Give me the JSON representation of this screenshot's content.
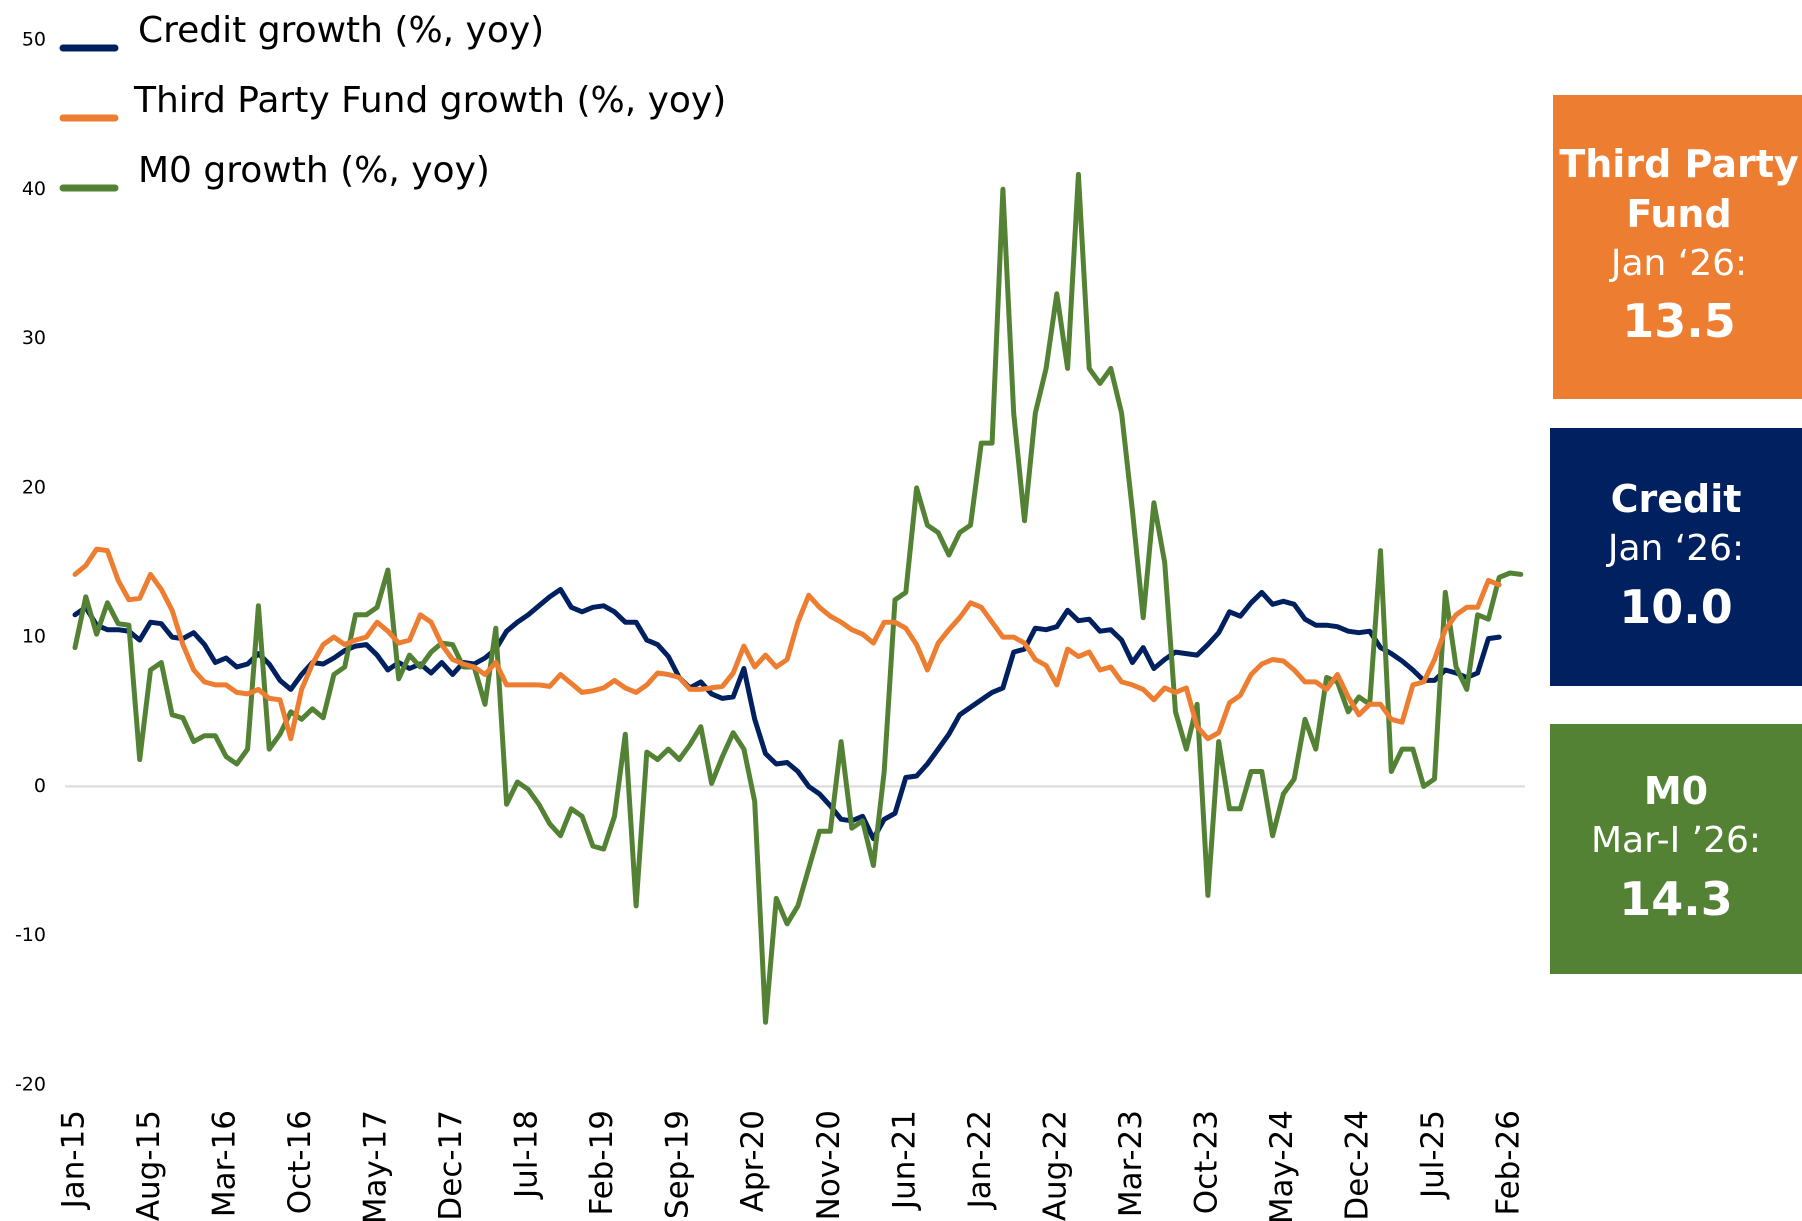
{
  "chart_data": {
    "type": "line",
    "categories": [
      "Jan-15",
      null,
      null,
      null,
      null,
      null,
      null,
      "Aug-15",
      null,
      null,
      null,
      null,
      null,
      null,
      "Mar-16",
      null,
      null,
      null,
      null,
      null,
      null,
      "Oct-16",
      null,
      null,
      null,
      null,
      null,
      null,
      "May-17",
      null,
      null,
      null,
      null,
      null,
      null,
      "Dec-17",
      null,
      null,
      null,
      null,
      null,
      null,
      "Jul-18",
      null,
      null,
      null,
      null,
      null,
      null,
      "Feb-19",
      null,
      null,
      null,
      null,
      null,
      null,
      "Sep-19",
      null,
      null,
      null,
      null,
      null,
      null,
      "Apr-20",
      null,
      null,
      null,
      null,
      null,
      null,
      "Nov-20",
      null,
      null,
      null,
      null,
      null,
      null,
      "Jun-21",
      null,
      null,
      null,
      null,
      null,
      null,
      "Jan-22",
      null,
      null,
      null,
      null,
      null,
      null,
      "Aug-22",
      null,
      null,
      null,
      null,
      null,
      null,
      "Mar-23",
      null,
      null,
      null,
      null,
      null,
      null,
      "Oct-23",
      null,
      null,
      null,
      null,
      null,
      null,
      "May-24",
      null,
      null,
      null,
      null,
      null,
      null,
      "Dec-24",
      null,
      null,
      null,
      null,
      null,
      null,
      "Jul-25",
      null,
      null,
      null,
      null,
      null,
      null,
      "Feb-26",
      null
    ],
    "series": [
      {
        "name": "Credit growth (%, yoy)",
        "color": "#002060",
        "values": [
          11.5,
          12,
          10.8,
          10.5,
          10.5,
          10.4,
          9.8,
          11,
          10.9,
          10,
          9.9,
          10.3,
          9.5,
          8.3,
          8.6,
          8,
          8.2,
          8.9,
          8.2,
          7.1,
          6.5,
          7.5,
          8.3,
          8.2,
          8.6,
          9.1,
          9.4,
          9.5,
          8.8,
          7.8,
          8.3,
          7.9,
          8.2,
          7.6,
          8.3,
          7.5,
          8.3,
          8.2,
          8.6,
          9.2,
          10.4,
          11,
          11.5,
          12.1,
          12.7,
          13.2,
          12,
          11.7,
          12,
          12.1,
          11.7,
          11,
          11,
          9.8,
          9.5,
          8.7,
          7.3,
          6.6,
          7,
          6.2,
          5.9,
          6,
          7.9,
          4.5,
          2.2,
          1.5,
          1.6,
          1,
          0,
          -0.5,
          -1.3,
          -2.2,
          -2.3,
          -2,
          -3.5,
          -2.2,
          -1.8,
          0.6,
          0.7,
          1.5,
          2.5,
          3.5,
          4.8,
          5.3,
          5.8,
          6.3,
          6.6,
          9,
          9.2,
          10.6,
          10.5,
          10.7,
          11.8,
          11.1,
          11.2,
          10.4,
          10.5,
          9.8,
          8.3,
          9.3,
          7.9,
          8.5,
          9,
          8.9,
          8.8,
          9.5,
          10.3,
          11.7,
          11.4,
          12.3,
          13,
          12.2,
          12.4,
          12.2,
          11.2,
          10.8,
          10.8,
          10.7,
          10.4,
          10.3,
          10.4,
          9.3,
          8.9,
          8.4,
          7.8,
          7.1,
          7.1,
          7.8,
          7.6,
          7.3,
          7.6,
          9.9,
          10.0,
          null,
          null
        ]
      },
      {
        "name": "Third Party Fund growth (%, yoy)",
        "color": "#ed7d31",
        "values": [
          14.2,
          14.8,
          15.9,
          15.8,
          13.8,
          12.5,
          12.6,
          14.2,
          13.2,
          11.8,
          9.5,
          7.8,
          7,
          6.8,
          6.8,
          6.3,
          6.2,
          6.5,
          5.9,
          5.8,
          3.2,
          6.5,
          8.2,
          9.5,
          10,
          9.5,
          9.8,
          10,
          11,
          10.4,
          9.6,
          9.8,
          11.5,
          11,
          9.5,
          8.5,
          8.2,
          8,
          7.5,
          8.3,
          6.8,
          6.8,
          6.8,
          6.8,
          6.7,
          7.5,
          6.9,
          6.3,
          6.4,
          6.6,
          7.1,
          6.6,
          6.3,
          6.8,
          7.6,
          7.5,
          7.3,
          6.5,
          6.5,
          6.6,
          6.7,
          7.6,
          9.4,
          8,
          8.8,
          8,
          8.5,
          11,
          12.8,
          12,
          11.4,
          11,
          10.5,
          10.2,
          9.6,
          11,
          11,
          10.6,
          9.5,
          7.8,
          9.6,
          10.5,
          11.3,
          12.3,
          12,
          11,
          10,
          10,
          9.6,
          8.5,
          8.1,
          6.8,
          9.2,
          8.7,
          9,
          7.8,
          8,
          7,
          6.8,
          6.5,
          5.8,
          6.6,
          6.3,
          6.6,
          4,
          3.2,
          3.6,
          5.6,
          6.1,
          7.5,
          8.2,
          8.5,
          8.4,
          7.8,
          7,
          7,
          6.5,
          7.5,
          6,
          4.8,
          5.5,
          5.5,
          4.5,
          4.3,
          6.8,
          7,
          8.5,
          10.5,
          11.5,
          12,
          12,
          13.8,
          13.5,
          null,
          null
        ]
      },
      {
        "name": "M0 growth (%, yoy)",
        "color": "#548235",
        "values": [
          9.3,
          12.7,
          10.2,
          12.3,
          10.9,
          10.8,
          1.8,
          7.8,
          8.3,
          4.8,
          4.6,
          3,
          3.4,
          3.4,
          2,
          1.5,
          2.5,
          12.1,
          2.5,
          3.5,
          5,
          4.5,
          5.2,
          4.6,
          7.5,
          8,
          11.5,
          11.5,
          12,
          14.5,
          7.2,
          8.8,
          8,
          9,
          9.6,
          9.5,
          8,
          8,
          5.5,
          10.6,
          -1.2,
          0.3,
          -0.2,
          -1.2,
          -2.5,
          -3.3,
          -1.5,
          -2,
          -4,
          -4.2,
          -2,
          3.5,
          -8,
          2.3,
          1.8,
          2.5,
          1.8,
          2.8,
          4,
          0.2,
          2,
          3.6,
          2.5,
          -1,
          -15.8,
          -7.5,
          -9.2,
          -8,
          -5.5,
          -3,
          -3,
          3,
          -2.8,
          -2.3,
          -5.3,
          1,
          12.5,
          13,
          20,
          17.5,
          17,
          15.5,
          17,
          17.5,
          23,
          23,
          40,
          25,
          17.8,
          25,
          28,
          33,
          28,
          41,
          28,
          27,
          28,
          25,
          18.5,
          11.3,
          19,
          15,
          5,
          2.5,
          5.5,
          -7.3,
          3,
          -1.5,
          -1.5,
          1,
          1,
          -3.3,
          -0.5,
          0.5,
          4.5,
          2.5,
          7.3,
          7,
          5,
          6,
          5.5,
          15.8,
          1,
          2.5,
          2.5,
          0,
          0.5,
          13,
          8,
          6.5,
          11.5,
          11.2,
          14,
          14.3,
          14.2
        ]
      }
    ],
    "ylim": [
      -20,
      50
    ],
    "yticks": [
      -20,
      -10,
      0,
      10,
      20,
      30,
      40,
      50
    ],
    "grid": false,
    "zero_line": true,
    "legend": "top-left",
    "boxes": [
      {
        "title": "Third Party Fund",
        "period": "Jan ‘26:",
        "value": "13.5",
        "color": "#ed7d31"
      },
      {
        "title": "Credit",
        "period": "Jan ‘26:",
        "value": "10.0",
        "color": "#002060"
      },
      {
        "title": "M0",
        "period": "Mar-I ’26:",
        "value": "14.3",
        "color": "#548235"
      }
    ]
  }
}
